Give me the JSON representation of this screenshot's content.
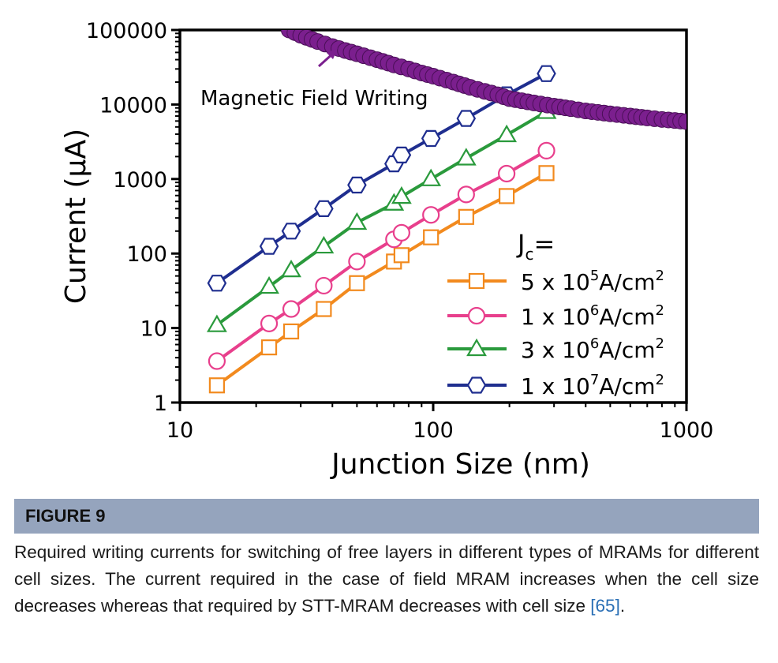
{
  "figure": {
    "label": "FIGURE 9",
    "caption_text": "Required writing currents for switching of free layers in different types of MRAMs for different cell sizes. The current required in the case of field MRAM increases when the cell size decreases whereas that required by STT-MRAM decreases with cell size ",
    "reference": "[65]",
    "caption_end": "."
  },
  "chart_data": {
    "type": "line",
    "xlabel": "Junction Size (nm)",
    "ylabel": "Current (μA)",
    "x_scale": "log",
    "y_scale": "log",
    "xlim": [
      10,
      1000
    ],
    "ylim": [
      1,
      100000
    ],
    "x_ticks": [
      "10",
      "100",
      "1000"
    ],
    "y_ticks": [
      "1",
      "10",
      "100",
      "1000",
      "10000",
      "100000"
    ],
    "grid": false,
    "legend_title": "Jc=",
    "legend_title_main": "J",
    "legend_title_sub": "c",
    "legend_title_eq": "=",
    "legend_placement": "bottom-right",
    "annotation": "Magnetic Field Writing",
    "series": [
      {
        "name": "5 x 10^5A/cm^2",
        "legend": {
          "pre": "5 x 10",
          "exp": "5",
          "mid": "A/cm",
          "exp2": "2"
        },
        "color": "#f28a1e",
        "marker": "square",
        "x": [
          14,
          22.5,
          27.5,
          37,
          50,
          70,
          75,
          98,
          135,
          195,
          280
        ],
        "y": [
          1.7,
          5.5,
          9,
          18,
          40,
          78,
          95,
          165,
          310,
          590,
          1200
        ]
      },
      {
        "name": "1 x 10^6A/cm^2",
        "legend": {
          "pre": "1 x 10",
          "exp": "6",
          "mid": "A/cm",
          "exp2": "2"
        },
        "color": "#e83f8c",
        "marker": "circle",
        "x": [
          14,
          22.5,
          27.5,
          37,
          50,
          70,
          75,
          98,
          135,
          195,
          280
        ],
        "y": [
          3.6,
          11.5,
          18,
          37,
          78,
          155,
          190,
          330,
          620,
          1180,
          2400
        ]
      },
      {
        "name": "3 x 10^6A/cm^2",
        "legend": {
          "pre": "3 x 10",
          "exp": "6",
          "mid": "A/cm",
          "exp2": "2"
        },
        "color": "#2a9a3c",
        "marker": "triangle",
        "x": [
          14,
          22.5,
          27.5,
          37,
          50,
          70,
          75,
          98,
          135,
          195,
          280
        ],
        "y": [
          11,
          36,
          60,
          125,
          260,
          470,
          580,
          1000,
          1900,
          3900,
          8000
        ]
      },
      {
        "name": "1 x 10^7A/cm^2",
        "legend": {
          "pre": "1 x 10",
          "exp": "7",
          "mid": "A/cm",
          "exp2": "2"
        },
        "color": "#1f2e8f",
        "marker": "hexagon",
        "x": [
          14,
          22.5,
          27.5,
          37,
          50,
          70,
          75,
          98,
          135,
          195,
          280
        ],
        "y": [
          40,
          125,
          200,
          400,
          830,
          1600,
          2100,
          3500,
          6500,
          13500,
          26000
        ]
      },
      {
        "name": "Magnetic Field Writing",
        "color": "#7b1f8e",
        "marker": "dense-circle",
        "x": [
          27,
          30,
          35,
          40,
          45,
          50,
          60,
          70,
          80,
          90,
          100,
          120,
          140,
          160,
          180,
          200,
          250,
          300,
          350,
          400,
          500,
          600,
          700,
          800,
          900,
          1000
        ],
        "y": [
          100000,
          85000,
          70000,
          60000,
          53000,
          48000,
          40000,
          34000,
          30000,
          26500,
          24000,
          20000,
          17000,
          15000,
          13500,
          12000,
          10500,
          9500,
          8800,
          8200,
          7500,
          7000,
          6600,
          6300,
          6100,
          5900
        ]
      }
    ]
  }
}
